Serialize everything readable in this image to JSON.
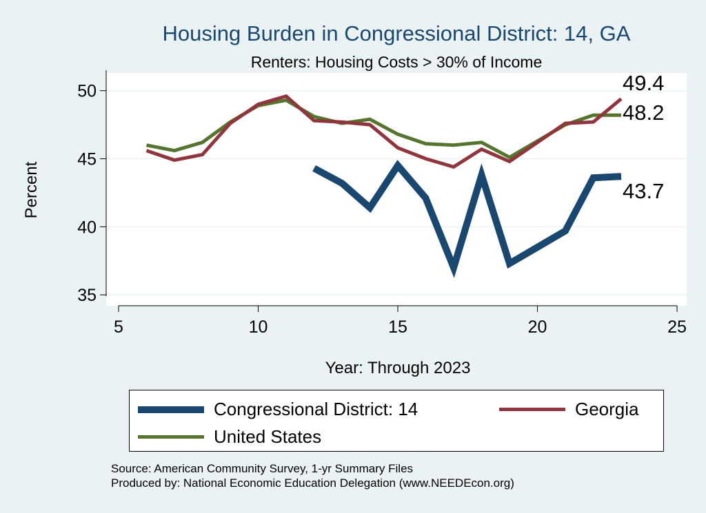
{
  "chart_data": {
    "type": "line",
    "title": "Housing Burden in Congressional District:  14, GA",
    "subtitle": "Renters: Housing Costs > 30% of Income",
    "xlabel": "Year: Through 2023",
    "ylabel": "Percent",
    "xlim": [
      5,
      25
    ],
    "ylim": [
      34.2,
      51.3
    ],
    "xticks": [
      5,
      10,
      15,
      20,
      25
    ],
    "yticks": [
      35,
      40,
      45,
      50
    ],
    "grid": true,
    "legend_position": "bottom",
    "series": [
      {
        "name": "Congressional District:  14",
        "color": "#1a476f",
        "x": [
          12,
          13,
          14,
          15,
          16,
          17,
          18,
          19,
          20,
          21,
          22,
          23
        ],
        "values": [
          44.3,
          43.2,
          41.4,
          44.5,
          42.1,
          37.0,
          43.8,
          37.3,
          38.5,
          39.7,
          43.6,
          43.7
        ],
        "end_label": "43.7"
      },
      {
        "name": "Georgia",
        "color": "#90353b",
        "x": [
          6,
          7,
          8,
          9,
          10,
          11,
          12,
          13,
          14,
          15,
          16,
          17,
          18,
          19,
          20,
          21,
          22,
          23
        ],
        "values": [
          45.6,
          44.9,
          45.3,
          47.6,
          49.0,
          49.6,
          47.8,
          47.7,
          47.5,
          45.8,
          45.0,
          44.4,
          45.7,
          44.8,
          46.2,
          47.6,
          47.7,
          49.4
        ],
        "end_label": "49.4"
      },
      {
        "name": "United States",
        "color": "#55752f",
        "x": [
          6,
          7,
          8,
          9,
          10,
          11,
          12,
          13,
          14,
          15,
          16,
          17,
          18,
          19,
          20,
          21,
          22,
          23
        ],
        "values": [
          46.0,
          45.6,
          46.2,
          47.7,
          48.9,
          49.3,
          48.1,
          47.6,
          47.9,
          46.8,
          46.1,
          46.0,
          46.2,
          45.1,
          46.3,
          47.5,
          48.2,
          48.2
        ],
        "end_label": "48.2"
      }
    ]
  },
  "footer": {
    "source": "Source: American Community Survey, 1-yr Summary Files",
    "producer": "Produced by: National Economic Education Delegation (www.NEEDEcon.org)"
  }
}
